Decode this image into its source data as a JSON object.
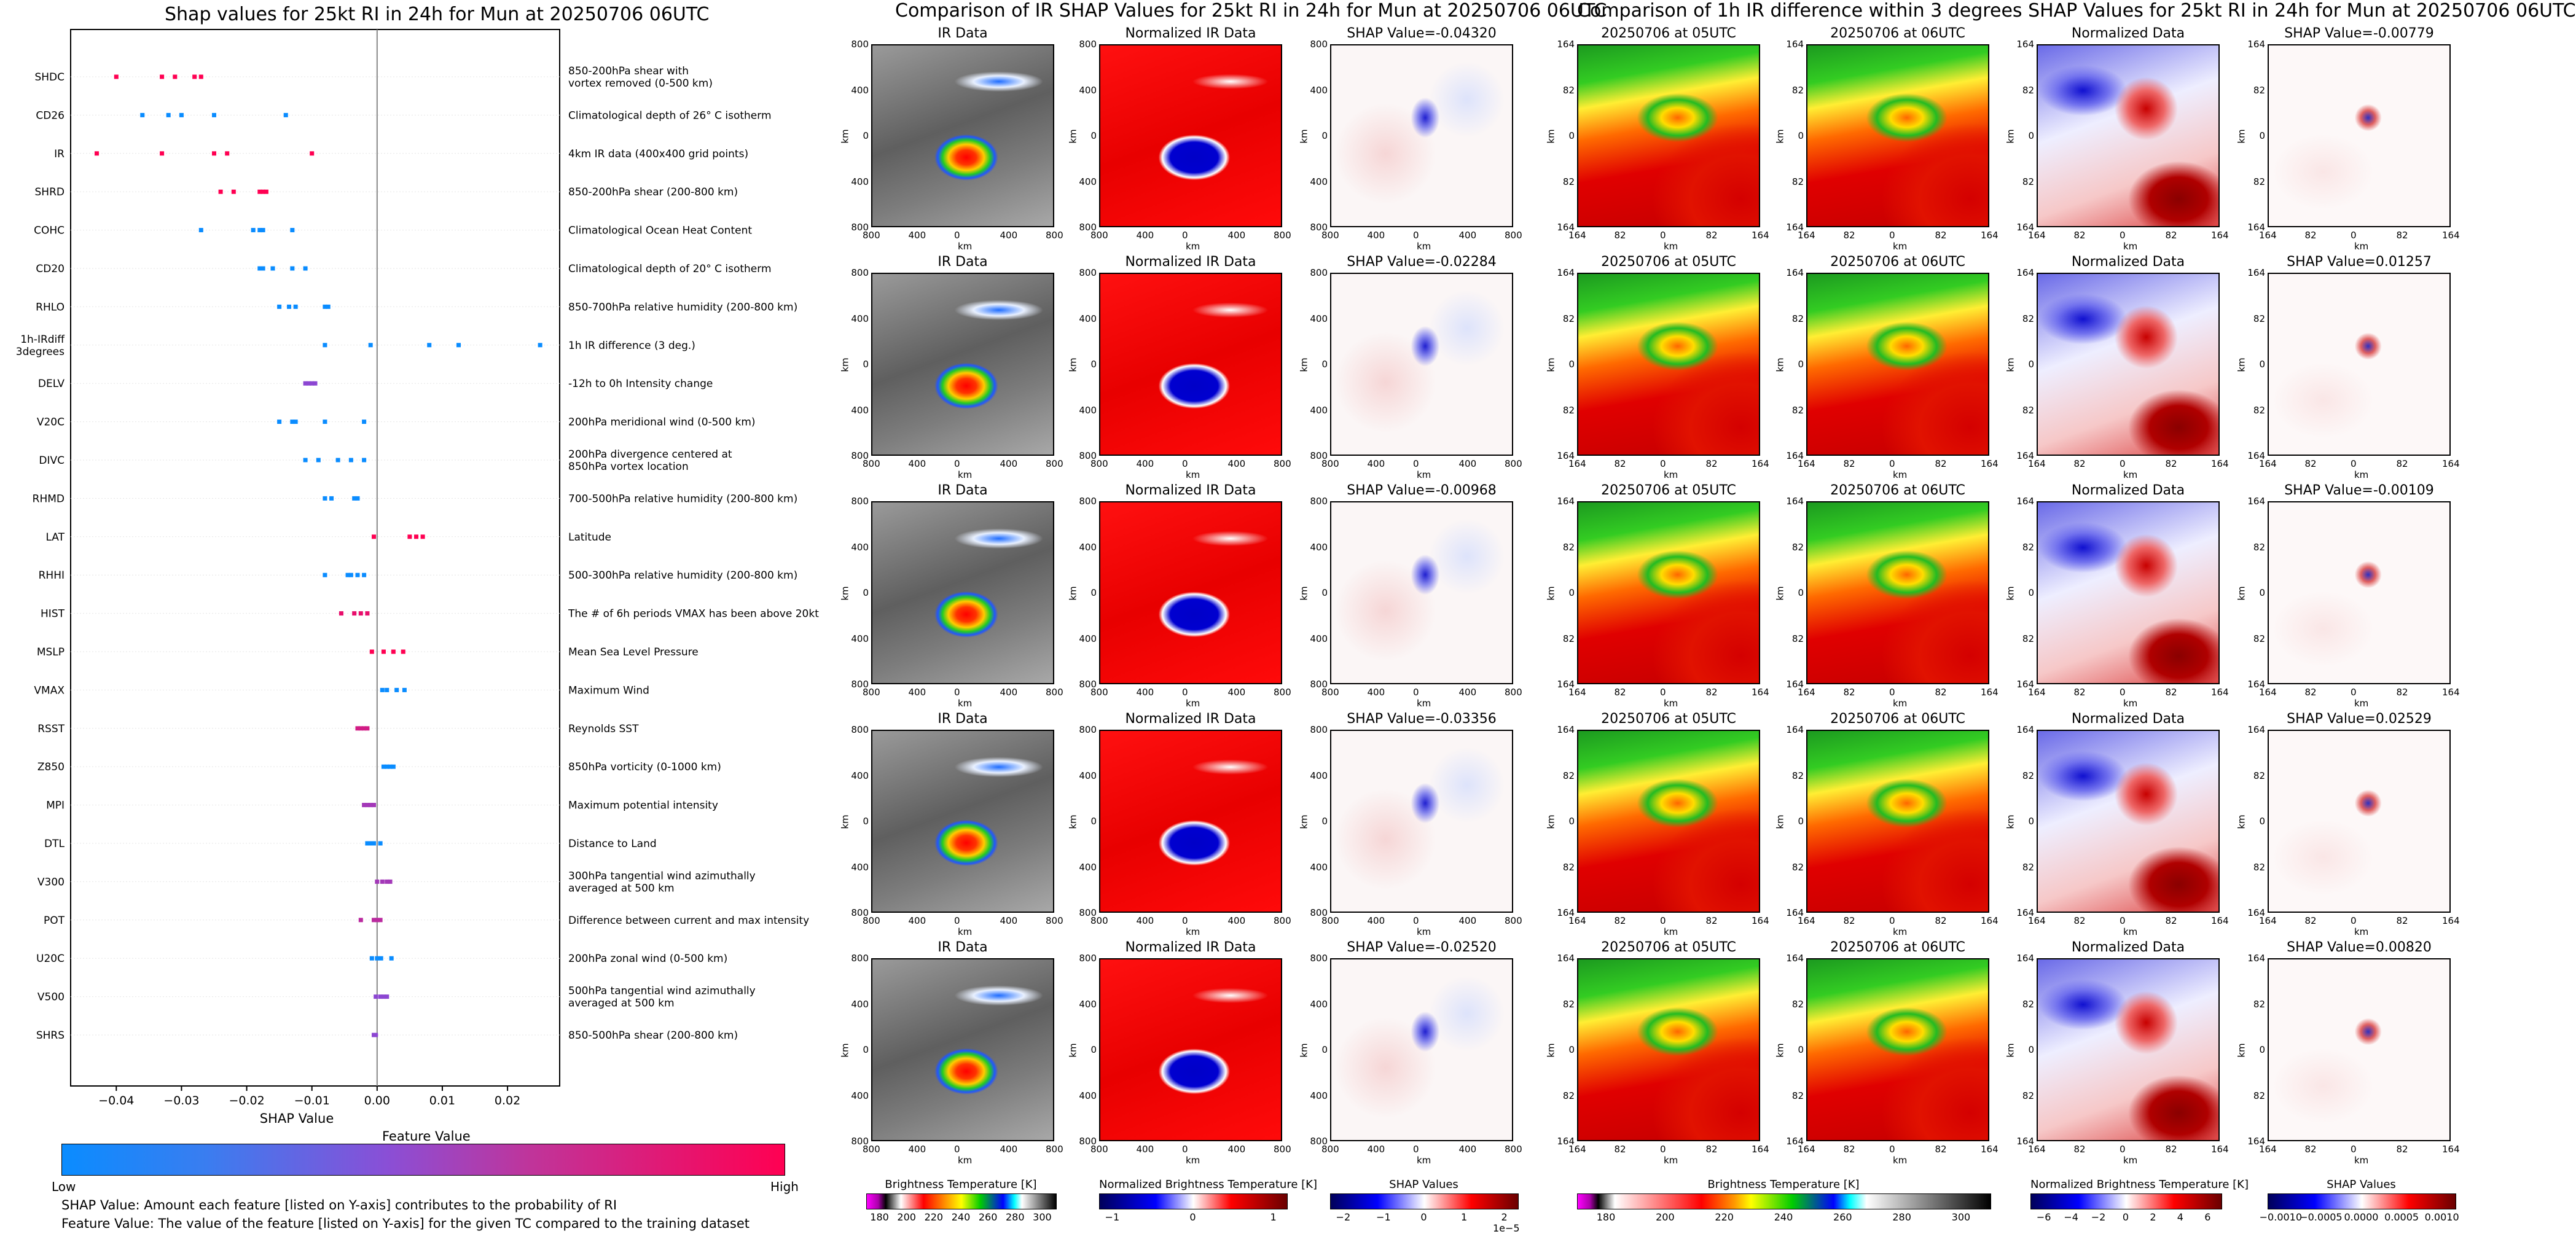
{
  "left": {
    "title": "Shap values for 25kt RI in 24h for Mun at 20250706 06UTC",
    "xlabel": "SHAP Value",
    "colorbar_title": "Feature Value",
    "colorbar_low": "Low",
    "colorbar_high": "High",
    "footnote1": "SHAP Value: Amount each feature [listed on Y-axis] contributes to the probability of RI",
    "footnote2": "Feature Value: The value of the feature [listed on Y-axis] for the given TC compared to the training dataset"
  },
  "colors": {
    "low": "#1e88e5",
    "mid": "#8e44ad",
    "high": "#ff0052",
    "grid_bg": "#ffffff"
  },
  "chart_data": [
    {
      "type": "scatter",
      "title": "Shap values for 25kt RI in 24h for Mun at 20250706 06UTC",
      "xlabel": "SHAP Value",
      "xlim": [
        -0.047,
        0.028
      ],
      "xticks": [
        -0.04,
        -0.03,
        -0.02,
        -0.01,
        0.0,
        0.01,
        0.02
      ],
      "xtick_labels": [
        "−0.04",
        "−0.03",
        "−0.02",
        "−0.01",
        "0.00",
        "0.01",
        "0.02"
      ],
      "features": [
        {
          "name": "SHDC",
          "desc": [
            "850-200hPa shear with",
            "vortex removed (0-500 km)"
          ],
          "points": [
            [
              -0.04,
              1.0
            ],
            [
              -0.033,
              1.0
            ],
            [
              -0.031,
              1.0
            ],
            [
              -0.028,
              1.0
            ],
            [
              -0.027,
              1.0
            ]
          ]
        },
        {
          "name": "CD26",
          "desc": [
            "Climatological depth of 26° C isotherm"
          ],
          "points": [
            [
              -0.036,
              0.0
            ],
            [
              -0.032,
              0.0
            ],
            [
              -0.03,
              0.0
            ],
            [
              -0.025,
              0.0
            ],
            [
              -0.014,
              0.0
            ]
          ]
        },
        {
          "name": "IR",
          "desc": [
            "4km IR data (400x400 grid points)"
          ],
          "points": [
            [
              -0.043,
              1.0
            ],
            [
              -0.033,
              1.0
            ],
            [
              -0.025,
              1.0
            ],
            [
              -0.023,
              1.0
            ],
            [
              -0.01,
              1.0
            ]
          ]
        },
        {
          "name": "SHRD",
          "desc": [
            "850-200hPa shear (200-800 km)"
          ],
          "points": [
            [
              -0.024,
              1.0
            ],
            [
              -0.022,
              1.0
            ],
            [
              -0.018,
              1.0
            ],
            [
              -0.0175,
              1.0
            ],
            [
              -0.017,
              1.0
            ]
          ]
        },
        {
          "name": "COHC",
          "desc": [
            "Climatological Ocean Heat Content"
          ],
          "points": [
            [
              -0.027,
              0.0
            ],
            [
              -0.019,
              0.0
            ],
            [
              -0.018,
              0.0
            ],
            [
              -0.0175,
              0.0
            ],
            [
              -0.013,
              0.0
            ]
          ]
        },
        {
          "name": "CD20",
          "desc": [
            "Climatological depth of 20° C isotherm"
          ],
          "points": [
            [
              -0.018,
              0.0
            ],
            [
              -0.0175,
              0.0
            ],
            [
              -0.016,
              0.0
            ],
            [
              -0.013,
              0.0
            ],
            [
              -0.011,
              0.0
            ]
          ]
        },
        {
          "name": "RHLO",
          "desc": [
            "850-700hPa relative humidity (200-800 km)"
          ],
          "points": [
            [
              -0.015,
              0.0
            ],
            [
              -0.0135,
              0.0
            ],
            [
              -0.0125,
              0.0
            ],
            [
              -0.008,
              0.0
            ],
            [
              -0.0075,
              0.0
            ]
          ]
        },
        {
          "name": "1h-IRdiff 3degrees",
          "label_lines": [
            "1h-IRdiff",
            "3degrees"
          ],
          "desc": [
            "1h IR difference (3 deg.)"
          ],
          "points": [
            [
              -0.008,
              0.0
            ],
            [
              -0.001,
              0.0
            ],
            [
              0.008,
              0.0
            ],
            [
              0.0125,
              0.0
            ],
            [
              0.025,
              0.0
            ]
          ]
        },
        {
          "name": "DELV",
          "desc": [
            "-12h to 0h Intensity change"
          ],
          "points": [
            [
              -0.011,
              0.5
            ],
            [
              -0.0105,
              0.5
            ],
            [
              -0.01,
              0.5
            ],
            [
              -0.0095,
              0.5
            ]
          ]
        },
        {
          "name": "V20C",
          "desc": [
            "200hPa meridional wind (0-500 km)"
          ],
          "points": [
            [
              -0.015,
              0.0
            ],
            [
              -0.013,
              0.0
            ],
            [
              -0.0125,
              0.0
            ],
            [
              -0.008,
              0.0
            ],
            [
              -0.002,
              0.0
            ]
          ]
        },
        {
          "name": "DIVC",
          "desc": [
            "200hPa divergence centered at",
            "850hPa vortex location"
          ],
          "points": [
            [
              -0.011,
              0.0
            ],
            [
              -0.009,
              0.0
            ],
            [
              -0.006,
              0.0
            ],
            [
              -0.004,
              0.0
            ],
            [
              -0.002,
              0.0
            ]
          ]
        },
        {
          "name": "RHMD",
          "desc": [
            "700-500hPa relative humidity (200-800 km)"
          ],
          "points": [
            [
              -0.008,
              0.0
            ],
            [
              -0.007,
              0.0
            ],
            [
              -0.0035,
              0.0
            ],
            [
              -0.003,
              0.0
            ]
          ]
        },
        {
          "name": "LAT",
          "desc": [
            "Latitude"
          ],
          "points": [
            [
              -0.0005,
              1.0
            ],
            [
              0.005,
              1.0
            ],
            [
              0.006,
              1.0
            ],
            [
              0.007,
              1.0
            ]
          ]
        },
        {
          "name": "RHHI",
          "desc": [
            "500-300hPa relative humidity (200-800 km)"
          ],
          "points": [
            [
              -0.008,
              0.0
            ],
            [
              -0.0045,
              0.0
            ],
            [
              -0.004,
              0.0
            ],
            [
              -0.003,
              0.0
            ],
            [
              -0.002,
              0.0
            ]
          ]
        },
        {
          "name": "HIST",
          "desc": [
            "The # of 6h periods VMAX has been above 20kt"
          ],
          "points": [
            [
              -0.0055,
              0.9
            ],
            [
              -0.0035,
              0.9
            ],
            [
              -0.0025,
              0.9
            ],
            [
              -0.0015,
              0.9
            ]
          ]
        },
        {
          "name": "MSLP",
          "desc": [
            "Mean Sea Level Pressure"
          ],
          "points": [
            [
              -0.0008,
              1.0
            ],
            [
              0.001,
              1.0
            ],
            [
              0.0025,
              1.0
            ],
            [
              0.004,
              1.0
            ]
          ]
        },
        {
          "name": "VMAX",
          "desc": [
            "Maximum Wind"
          ],
          "points": [
            [
              0.0008,
              0.0
            ],
            [
              0.0015,
              0.0
            ],
            [
              0.003,
              0.0
            ],
            [
              0.0042,
              0.0
            ]
          ]
        },
        {
          "name": "RSST",
          "desc": [
            "Reynolds SST"
          ],
          "points": [
            [
              -0.003,
              0.8
            ],
            [
              -0.0025,
              0.8
            ],
            [
              -0.002,
              0.8
            ],
            [
              -0.0015,
              0.8
            ]
          ]
        },
        {
          "name": "Z850",
          "desc": [
            "850hPa vorticity (0-1000 km)"
          ],
          "points": [
            [
              0.001,
              0.0
            ],
            [
              0.0015,
              0.0
            ],
            [
              0.002,
              0.0
            ],
            [
              0.0025,
              0.0
            ]
          ]
        },
        {
          "name": "MPI",
          "desc": [
            "Maximum potential intensity"
          ],
          "points": [
            [
              -0.002,
              0.6
            ],
            [
              -0.0015,
              0.6
            ],
            [
              -0.001,
              0.6
            ],
            [
              -0.0005,
              0.6
            ]
          ]
        },
        {
          "name": "DTL",
          "desc": [
            "Distance to Land"
          ],
          "points": [
            [
              -0.0015,
              0.0
            ],
            [
              -0.001,
              0.0
            ],
            [
              -0.0005,
              0.0
            ],
            [
              0.0005,
              0.0
            ]
          ]
        },
        {
          "name": "V300",
          "desc": [
            "300hPa tangential wind azimuthally",
            "averaged at 500 km"
          ],
          "points": [
            [
              0.0,
              0.6
            ],
            [
              0.0008,
              0.6
            ],
            [
              0.0015,
              0.6
            ],
            [
              0.002,
              0.6
            ]
          ]
        },
        {
          "name": "POT",
          "desc": [
            "Difference between current and max intensity"
          ],
          "points": [
            [
              -0.0025,
              0.7
            ],
            [
              -0.0005,
              0.7
            ],
            [
              0.0,
              0.7
            ],
            [
              0.0005,
              0.7
            ]
          ]
        },
        {
          "name": "U20C",
          "desc": [
            "200hPa zonal wind (0-500 km)"
          ],
          "points": [
            [
              -0.0008,
              0.0
            ],
            [
              0.0,
              0.0
            ],
            [
              0.0006,
              0.0
            ],
            [
              0.0022,
              0.0
            ]
          ]
        },
        {
          "name": "V500",
          "desc": [
            "500hPa tangential wind azimuthally",
            "averaged at 500 km"
          ],
          "points": [
            [
              -0.0002,
              0.5
            ],
            [
              0.0005,
              0.5
            ],
            [
              0.001,
              0.5
            ],
            [
              0.0015,
              0.5
            ]
          ]
        },
        {
          "name": "SHRS",
          "desc": [
            "850-500hPa shear (200-800 km)"
          ],
          "points": [
            [
              -0.0005,
              0.5
            ],
            [
              -0.0002,
              0.5
            ]
          ]
        }
      ]
    },
    {
      "type": "heatmap",
      "group": "Comparison of IR SHAP Values for 25kt RI in 24h for Mun at 20250706 06UTC",
      "columns": [
        {
          "key": "ir",
          "titles": [
            "IR Data",
            "IR Data",
            "IR Data",
            "IR Data",
            "IR Data"
          ],
          "xticks": [
            "800",
            "400",
            "0",
            "400",
            "800"
          ],
          "yticks": [
            "800",
            "400",
            "0",
            "400",
            "800"
          ],
          "xlabel": "km",
          "ylabel": "km",
          "colorbar": {
            "label": "Brightness Temperature [K]",
            "ticks": [
              "180",
              "200",
              "220",
              "240",
              "260",
              "280",
              "300"
            ]
          }
        },
        {
          "key": "nir",
          "titles": [
            "Normalized IR Data",
            "Normalized IR Data",
            "Normalized IR Data",
            "Normalized IR Data",
            "Normalized IR Data"
          ],
          "xticks": [
            "800",
            "400",
            "0",
            "400",
            "800"
          ],
          "yticks": [
            "800",
            "400",
            "0",
            "400",
            "800"
          ],
          "xlabel": "km",
          "ylabel": "km",
          "colorbar": {
            "label": "Normalized Brightness Temperature [K]",
            "ticks": [
              "−1",
              "0",
              "1"
            ]
          }
        },
        {
          "key": "shap",
          "titles": [
            "SHAP Value=-0.04320",
            "SHAP Value=-0.02284",
            "SHAP Value=-0.00968",
            "SHAP Value=-0.03356",
            "SHAP Value=-0.02520"
          ],
          "xticks": [
            "800",
            "400",
            "0",
            "400",
            "800"
          ],
          "yticks": [
            "800",
            "400",
            "0",
            "400",
            "800"
          ],
          "xlabel": "km",
          "ylabel": "km",
          "colorbar": {
            "label": "SHAP Values",
            "ticks": [
              "−2",
              "−1",
              "0",
              "1",
              "2"
            ],
            "exponent": "1e−5"
          }
        }
      ]
    },
    {
      "type": "heatmap",
      "group": "Comparison of 1h IR difference within 3 degrees SHAP Values for 25kt RI in 24h for Mun at 20250706 06UTC",
      "columns": [
        {
          "key": "t05",
          "titles": [
            "20250706 at 05UTC",
            "20250706 at 05UTC",
            "20250706 at 05UTC",
            "20250706 at 05UTC",
            "20250706 at 05UTC"
          ],
          "xticks": [
            "164",
            "82",
            "0",
            "82",
            "164"
          ],
          "yticks": [
            "164",
            "82",
            "0",
            "82",
            "164"
          ],
          "xlabel": "km",
          "ylabel": "km",
          "colorbar": {
            "label": "Brightness Temperature [K]",
            "ticks": [
              "180",
              "200",
              "220",
              "240",
              "260",
              "280",
              "300"
            ]
          }
        },
        {
          "key": "t06",
          "titles": [
            "20250706 at 06UTC",
            "20250706 at 06UTC",
            "20250706 at 06UTC",
            "20250706 at 06UTC",
            "20250706 at 06UTC"
          ],
          "xticks": [
            "164",
            "82",
            "0",
            "82",
            "164"
          ],
          "yticks": [
            "164",
            "82",
            "0",
            "82",
            "164"
          ],
          "xlabel": "km",
          "ylabel": "km"
        },
        {
          "key": "norm",
          "titles": [
            "Normalized Data",
            "Normalized Data",
            "Normalized Data",
            "Normalized Data",
            "Normalized Data"
          ],
          "xticks": [
            "164",
            "82",
            "0",
            "82",
            "164"
          ],
          "yticks": [
            "164",
            "82",
            "0",
            "82",
            "164"
          ],
          "xlabel": "km",
          "ylabel": "km",
          "colorbar": {
            "label": "Normalized Brightness Temperature [K]",
            "ticks": [
              "−6",
              "−4",
              "−2",
              "0",
              "2",
              "4",
              "6"
            ]
          }
        },
        {
          "key": "dshap",
          "titles": [
            "SHAP Value=-0.00779",
            "SHAP Value=0.01257",
            "SHAP Value=-0.00109",
            "SHAP Value=0.02529",
            "SHAP Value=0.00820"
          ],
          "xticks": [
            "164",
            "82",
            "0",
            "82",
            "164"
          ],
          "yticks": [
            "164",
            "82",
            "0",
            "82",
            "164"
          ],
          "xlabel": "km",
          "ylabel": "km",
          "colorbar": {
            "label": "SHAP Values",
            "ticks": [
              "−0.0010",
              "−0.0005",
              "0.0000",
              "0.0005",
              "0.0010"
            ]
          }
        }
      ]
    }
  ],
  "mid_title": "Comparison of IR SHAP Values for 25kt RI in 24h for Mun at 20250706 06UTC",
  "right_title": "Comparison of 1h IR difference within 3 degrees SHAP Values for 25kt RI in 24h for Mun at 20250706 06UTC"
}
